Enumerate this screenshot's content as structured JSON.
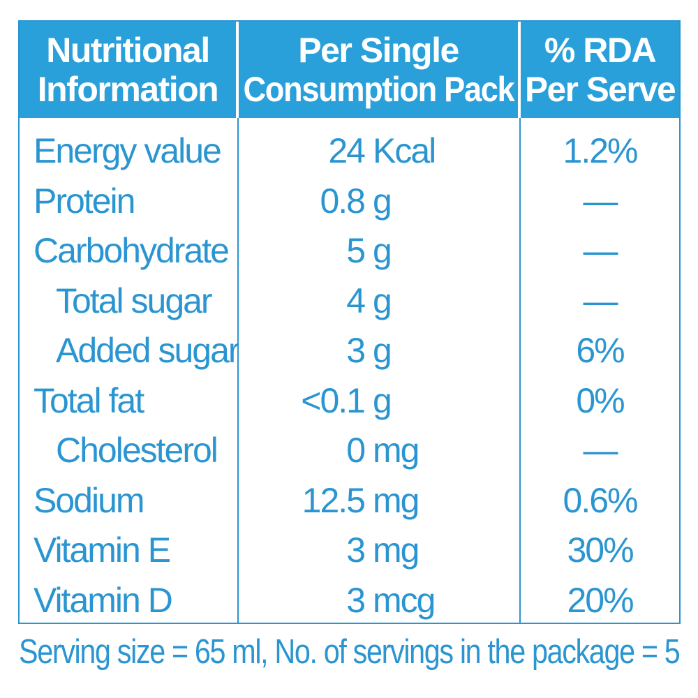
{
  "colors": {
    "accent": "#2aa0da",
    "text": "#2a95d1",
    "header_text": "#ffffff"
  },
  "header": {
    "col1": [
      "Nutritional",
      "Information"
    ],
    "col2": [
      "Per Single",
      "Consumption Pack"
    ],
    "col3": [
      "% RDA",
      "Per Serve"
    ]
  },
  "rows": [
    {
      "name": "Energy value",
      "indent": false,
      "amount": "24",
      "unit": "Kcal",
      "rda": "1.2%"
    },
    {
      "name": "Protein",
      "indent": false,
      "amount": "0.8",
      "unit": "g",
      "rda": "—"
    },
    {
      "name": "Carbohydrate",
      "indent": false,
      "amount": "5",
      "unit": "g",
      "rda": "—"
    },
    {
      "name": "Total sugar",
      "indent": true,
      "amount": "4",
      "unit": "g",
      "rda": "—"
    },
    {
      "name": "Added sugar",
      "indent": true,
      "amount": "3",
      "unit": "g",
      "rda": "6%"
    },
    {
      "name": "Total fat",
      "indent": false,
      "amount": "<0.1",
      "unit": "g",
      "rda": "0%"
    },
    {
      "name": "Cholesterol",
      "indent": true,
      "amount": "0",
      "unit": "mg",
      "rda": "—"
    },
    {
      "name": "Sodium",
      "indent": false,
      "amount": "12.5",
      "unit": "mg",
      "rda": "0.6%"
    },
    {
      "name": "Vitamin E",
      "indent": false,
      "amount": "3",
      "unit": "mg",
      "rda": "30%"
    },
    {
      "name": "Vitamin D",
      "indent": false,
      "amount": "3",
      "unit": "mcg",
      "rda": "20%"
    }
  ],
  "footer": "Serving size = 65 ml, No. of servings in the package = 5"
}
